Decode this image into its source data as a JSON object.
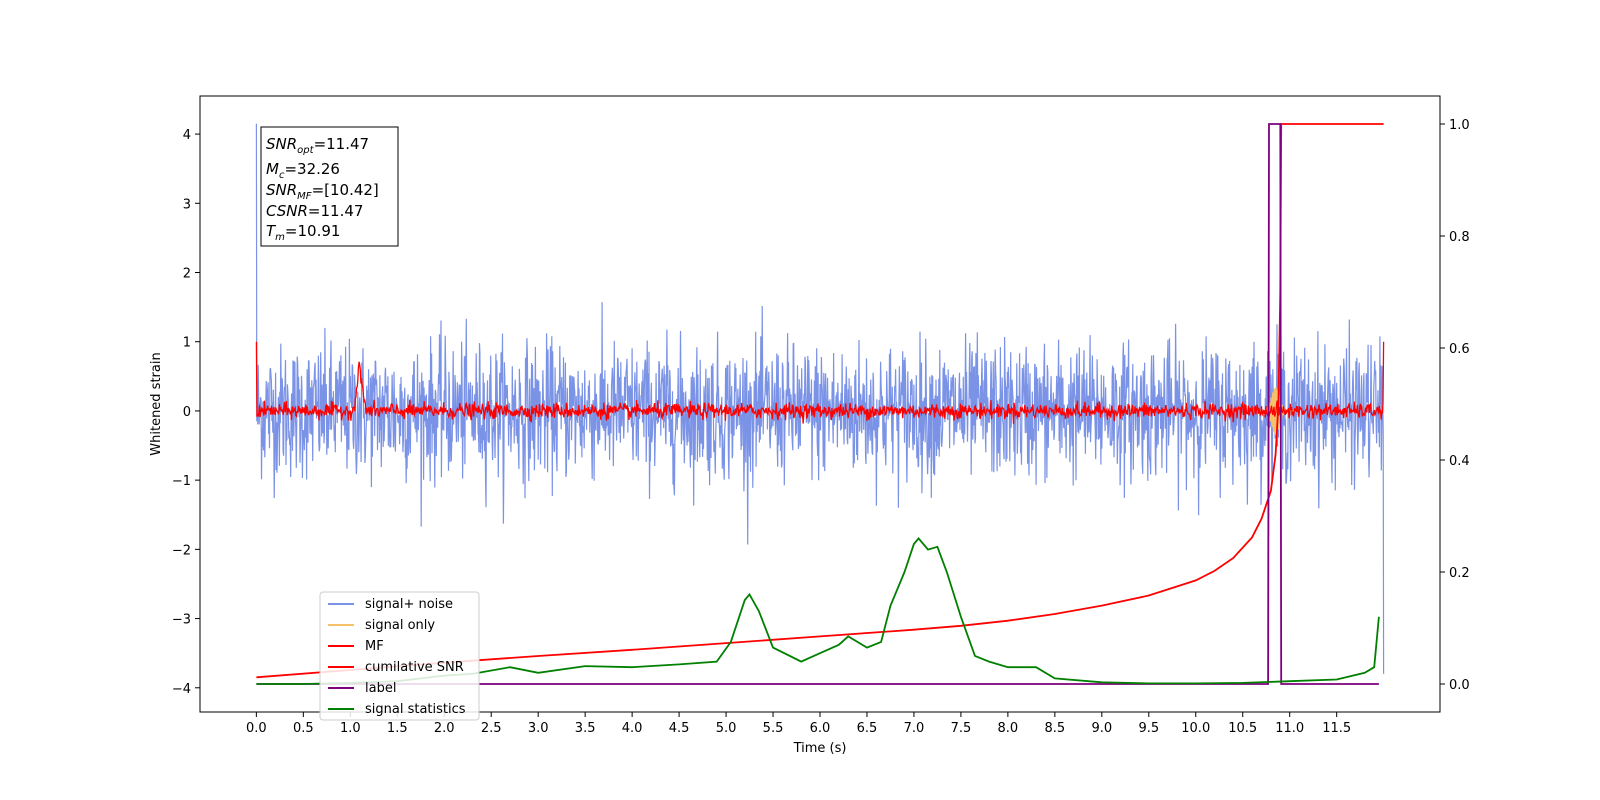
{
  "chart_data": {
    "type": "line",
    "xlabel": "Time (s)",
    "ylabel_left": "Whitened strain",
    "xlim": [
      -0.6,
      12.6
    ],
    "ylim_left": [
      -4.35,
      4.55
    ],
    "ylim_right": [
      -0.05,
      1.05
    ],
    "x_ticks": [
      "0.0",
      "0.5",
      "1.0",
      "1.5",
      "2.0",
      "2.5",
      "3.0",
      "3.5",
      "4.0",
      "4.5",
      "5.0",
      "5.5",
      "6.0",
      "6.5",
      "7.0",
      "7.5",
      "8.0",
      "8.5",
      "9.0",
      "9.5",
      "10.0",
      "10.5",
      "11.0",
      "11.5"
    ],
    "y_ticks_left": [
      "4",
      "3",
      "2",
      "1",
      "0",
      "−1",
      "−2",
      "−3",
      "−4"
    ],
    "y_ticks_right": [
      "1.0",
      "0.8",
      "0.6",
      "0.4",
      "0.2",
      "0.0"
    ],
    "grid": false,
    "legend_placement": "lower-left",
    "stats_box": {
      "snr_opt": "=11.47",
      "mc": "=32.26",
      "snr_mf": "=[10.42]",
      "csnr": "=11.47",
      "tm": "=10.91"
    },
    "series": [
      {
        "name": "signal+ noise",
        "axis": "left",
        "color": "#7b93e6",
        "description_values": {
          "x_start": 0.0,
          "x_end": 12.0,
          "typical_range": [
            -1.2,
            1.2
          ],
          "max": 4.15,
          "min": -3.8
        }
      },
      {
        "name": "signal only",
        "axis": "left",
        "color": "#f5c26b",
        "burst_center": 10.85,
        "burst_amplitude": 0.35
      },
      {
        "name": "MF",
        "axis": "left",
        "color": "#ff0000",
        "typical_range": [
          -0.15,
          0.15
        ],
        "peak_x": 1.1,
        "peak_y": 0.6
      },
      {
        "name": "cumilative SNR",
        "axis": "right",
        "color": "#ff0000",
        "x": [
          0.0,
          1.0,
          2.0,
          3.0,
          4.0,
          5.0,
          6.0,
          7.0,
          7.5,
          8.0,
          8.5,
          9.0,
          9.5,
          10.0,
          10.2,
          10.4,
          10.6,
          10.7,
          10.8,
          10.85,
          10.88,
          10.9,
          10.91,
          12.0
        ],
        "values": [
          0.012,
          0.025,
          0.038,
          0.05,
          0.061,
          0.073,
          0.085,
          0.097,
          0.104,
          0.113,
          0.125,
          0.14,
          0.158,
          0.185,
          0.202,
          0.225,
          0.262,
          0.295,
          0.345,
          0.41,
          0.5,
          0.7,
          1.0,
          1.0
        ]
      },
      {
        "name": "label",
        "axis": "right",
        "color": "#7f007f",
        "x": [
          0.0,
          10.77,
          10.78,
          10.9,
          10.91,
          11.0,
          11.95
        ],
        "values": [
          0.0,
          0.0,
          1.0,
          1.0,
          0.0,
          0.0,
          0.0
        ]
      },
      {
        "name": "signal statistics",
        "axis": "right",
        "color": "#008000",
        "x": [
          0.0,
          0.5,
          1.0,
          1.5,
          2.0,
          2.3,
          2.7,
          3.0,
          3.5,
          4.0,
          4.5,
          4.9,
          5.05,
          5.2,
          5.25,
          5.35,
          5.5,
          5.8,
          6.0,
          6.2,
          6.3,
          6.5,
          6.65,
          6.75,
          6.9,
          7.0,
          7.05,
          7.15,
          7.25,
          7.35,
          7.5,
          7.65,
          7.8,
          8.0,
          8.3,
          8.5,
          9.0,
          9.5,
          10.0,
          10.5,
          11.0,
          11.5,
          11.8,
          11.9,
          11.95
        ],
        "values": [
          0.0,
          0.0,
          0.002,
          0.005,
          0.015,
          0.018,
          0.03,
          0.02,
          0.032,
          0.03,
          0.035,
          0.04,
          0.075,
          0.15,
          0.16,
          0.13,
          0.065,
          0.04,
          0.055,
          0.07,
          0.085,
          0.065,
          0.075,
          0.14,
          0.2,
          0.25,
          0.26,
          0.24,
          0.245,
          0.2,
          0.12,
          0.05,
          0.04,
          0.03,
          0.03,
          0.01,
          0.003,
          0.001,
          0.001,
          0.002,
          0.005,
          0.008,
          0.02,
          0.03,
          0.12
        ]
      }
    ]
  }
}
